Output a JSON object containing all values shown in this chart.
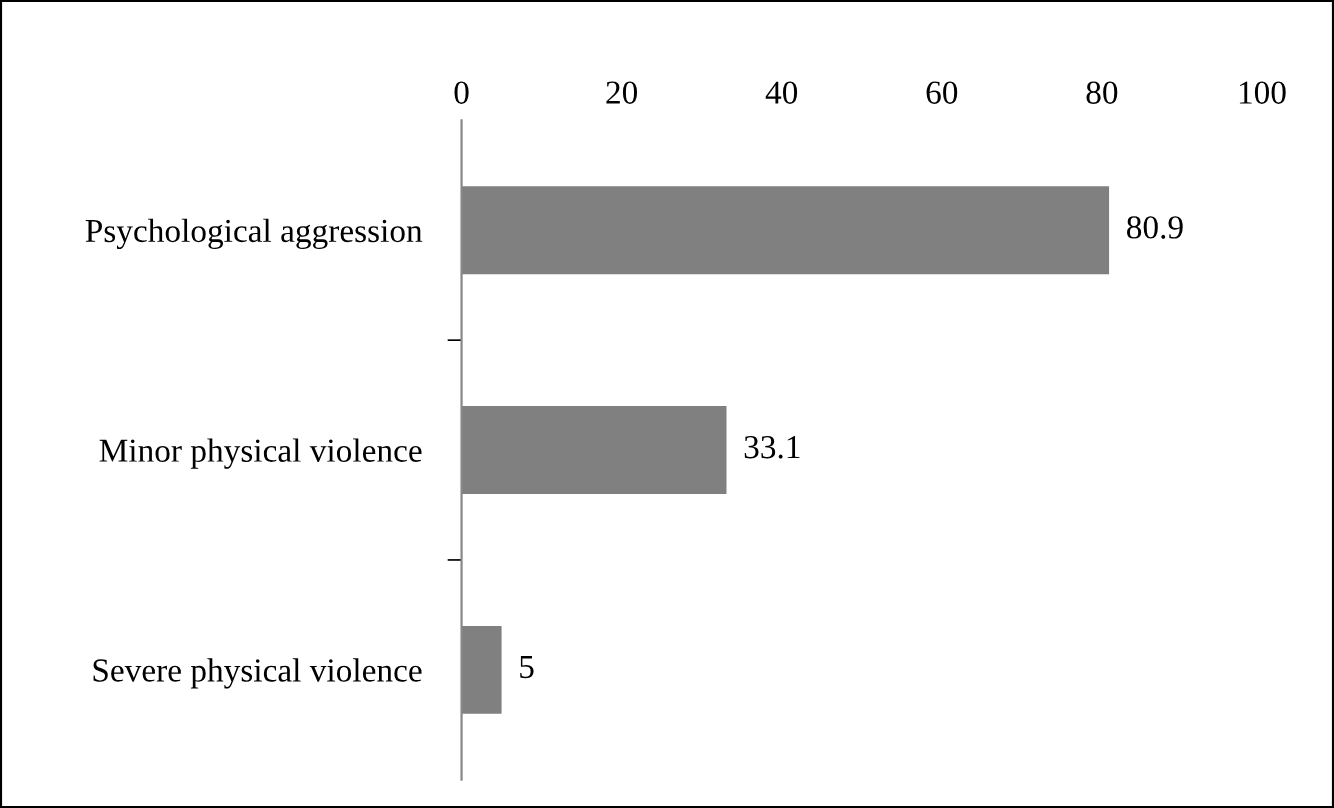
{
  "chart_data": {
    "type": "bar",
    "orientation": "horizontal",
    "categories": [
      "Psychological aggression",
      "Minor physical violence",
      "Severe physical violence"
    ],
    "values": [
      80.9,
      33.1,
      5
    ],
    "color": "#808080",
    "xlim": [
      0,
      100
    ],
    "xticks": [
      0,
      20,
      40,
      60,
      80,
      100
    ],
    "data_labels": true,
    "grid": false,
    "legend": false
  }
}
